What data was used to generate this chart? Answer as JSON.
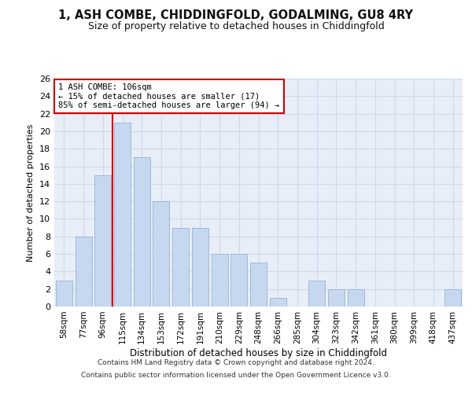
{
  "title1": "1, ASH COMBE, CHIDDINGFOLD, GODALMING, GU8 4RY",
  "title2": "Size of property relative to detached houses in Chiddingfold",
  "xlabel": "Distribution of detached houses by size in Chiddingfold",
  "ylabel": "Number of detached properties",
  "categories": [
    "58sqm",
    "77sqm",
    "96sqm",
    "115sqm",
    "134sqm",
    "153sqm",
    "172sqm",
    "191sqm",
    "210sqm",
    "229sqm",
    "248sqm",
    "266sqm",
    "285sqm",
    "304sqm",
    "323sqm",
    "342sqm",
    "361sqm",
    "380sqm",
    "399sqm",
    "418sqm",
    "437sqm"
  ],
  "values": [
    3,
    8,
    15,
    21,
    17,
    12,
    9,
    9,
    6,
    6,
    5,
    1,
    0,
    3,
    2,
    2,
    0,
    0,
    0,
    0,
    2
  ],
  "bar_color": "#c5d8f0",
  "bar_edge_color": "#a0b8d8",
  "grid_color": "#d0d8e8",
  "background_color": "#e8eef8",
  "vline_x": 1.5,
  "vline_color": "#cc0000",
  "annotation_line1": "1 ASH COMBE: 106sqm",
  "annotation_line2": "← 15% of detached houses are smaller (17)",
  "annotation_line3": "85% of semi-detached houses are larger (94) →",
  "annotation_box_color": "#cc0000",
  "ylim": [
    0,
    26
  ],
  "yticks": [
    0,
    2,
    4,
    6,
    8,
    10,
    12,
    14,
    16,
    18,
    20,
    22,
    24,
    26
  ],
  "footer1": "Contains HM Land Registry data © Crown copyright and database right 2024.",
  "footer2": "Contains public sector information licensed under the Open Government Licence v3.0."
}
